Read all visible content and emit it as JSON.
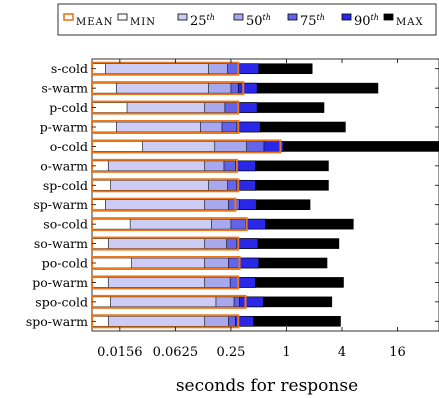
{
  "chart_data": {
    "type": "bar",
    "title": "",
    "xlabel": "seconds for response",
    "ylabel": "",
    "x_scale": "log",
    "xlim": [
      0.0078,
      45
    ],
    "xticks": [
      {
        "value": 0.015625,
        "label": "0.0156"
      },
      {
        "value": 0.0625,
        "label": "0.0625"
      },
      {
        "value": 0.25,
        "label": "0.25"
      },
      {
        "value": 1,
        "label": "1"
      },
      {
        "value": 4,
        "label": "4"
      },
      {
        "value": 16,
        "label": "16"
      }
    ],
    "grid": false,
    "legend": {
      "position": "top",
      "entries": [
        {
          "key": "mean",
          "label": "MEAN",
          "color": "#e8771e"
        },
        {
          "key": "min",
          "label": "MIN",
          "color": "#ffffff"
        },
        {
          "key": "p25",
          "label": "25",
          "sup": "th",
          "color": "#ccccf5"
        },
        {
          "key": "p50",
          "label": "50",
          "sup": "th",
          "color": "#a8a8ee"
        },
        {
          "key": "p75",
          "label": "75",
          "sup": "th",
          "color": "#6464e8"
        },
        {
          "key": "p90",
          "label": "90",
          "sup": "th",
          "color": "#2828e6"
        },
        {
          "key": "max",
          "label": "MAX",
          "color": "#000000"
        }
      ]
    },
    "categories": [
      "s-cold",
      "s-warm",
      "p-cold",
      "p-warm",
      "o-cold",
      "o-warm",
      "sp-cold",
      "sp-warm",
      "so-cold",
      "so-warm",
      "po-cold",
      "po-warm",
      "spo-cold",
      "spo-warm"
    ],
    "series": [
      {
        "key": "min",
        "values": [
          0.0109,
          0.0143,
          0.0187,
          0.0143,
          0.0275,
          0.0117,
          0.0124,
          0.0109,
          0.0202,
          0.0117,
          0.021,
          0.0117,
          0.0124,
          0.0117
        ]
      },
      {
        "key": "p25",
        "values": [
          0.143,
          0.143,
          0.13,
          0.117,
          0.167,
          0.13,
          0.143,
          0.13,
          0.154,
          0.13,
          0.13,
          0.13,
          0.172,
          0.13
        ]
      },
      {
        "key": "p50",
        "values": [
          0.23,
          0.25,
          0.215,
          0.2,
          0.37,
          0.21,
          0.23,
          0.235,
          0.25,
          0.225,
          0.235,
          0.245,
          0.27,
          0.235
        ]
      },
      {
        "key": "p75",
        "values": [
          0.3,
          0.3,
          0.3,
          0.29,
          0.57,
          0.28,
          0.29,
          0.31,
          0.36,
          0.29,
          0.31,
          0.3,
          0.31,
          0.28
        ]
      },
      {
        "key": "p90",
        "values": [
          0.5,
          0.48,
          0.48,
          0.52,
          0.92,
          0.46,
          0.46,
          0.47,
          0.59,
          0.49,
          0.5,
          0.46,
          0.56,
          0.44
        ]
      },
      {
        "key": "max",
        "values": [
          1.9,
          9.8,
          2.55,
          4.35,
          45.0,
          2.85,
          2.85,
          1.8,
          5.3,
          3.7,
          2.75,
          4.15,
          3.1,
          3.85
        ]
      },
      {
        "key": "mean",
        "values": [
          0.3,
          0.34,
          0.3,
          0.3,
          0.86,
          0.29,
          0.3,
          0.28,
          0.37,
          0.3,
          0.31,
          0.3,
          0.36,
          0.3
        ]
      }
    ]
  }
}
